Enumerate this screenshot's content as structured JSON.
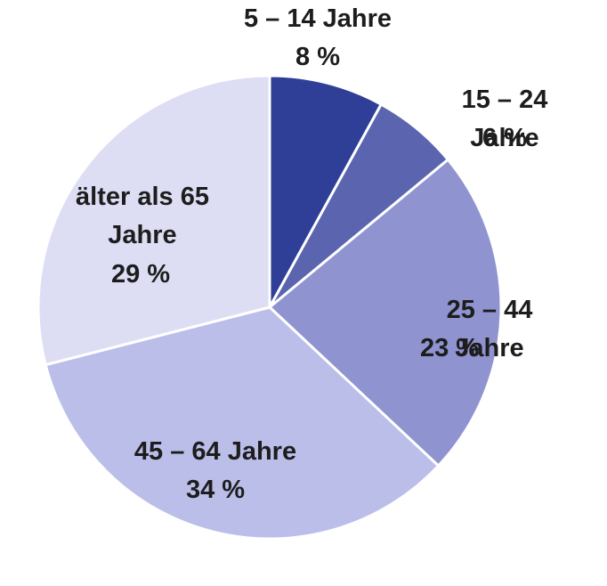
{
  "chart_data": {
    "type": "pie",
    "categories": [
      "5 – 14 Jahre",
      "15 – 24 Jahre",
      "25 – 44  Jahre",
      "45 – 64 Jahre",
      "älter als 65 Jahre"
    ],
    "values": [
      8,
      6,
      23,
      34,
      29
    ],
    "value_labels": [
      "8 %",
      "6 %",
      "23 %",
      "34 %",
      "29 %"
    ],
    "colors": [
      "#2f3f97",
      "#5b64ae",
      "#8f93d0",
      "#bbbee9",
      "#dddef4"
    ]
  }
}
